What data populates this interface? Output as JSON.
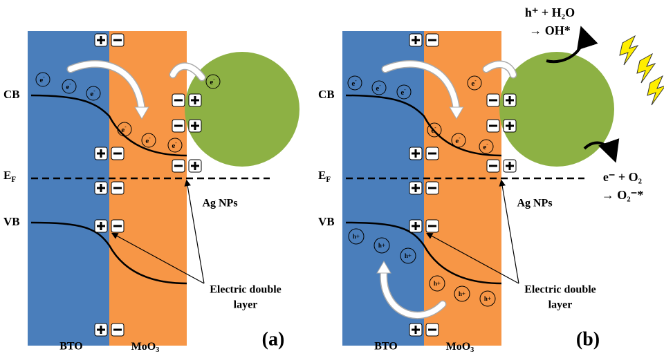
{
  "panels": [
    {
      "label": "(a)",
      "band_labels": {
        "cb": "CB",
        "ef": {
          "main": "E",
          "sub": "F"
        },
        "vb": "VB"
      },
      "materials": {
        "bto": "BTO",
        "moo3": {
          "main": "MoO",
          "sub": "3"
        },
        "ag": "Ag NPs"
      },
      "annotation": [
        "Electric double",
        "layer"
      ],
      "carriers": {
        "electron": {
          "main": "e",
          "sup": "-"
        }
      }
    },
    {
      "label": "(b)",
      "band_labels": {
        "cb": "CB",
        "ef": {
          "main": "E",
          "sub": "F"
        },
        "vb": "VB"
      },
      "materials": {
        "bto": "BTO",
        "moo3": {
          "main": "MoO",
          "sub": "3"
        },
        "ag": "Ag NPs"
      },
      "annotation": [
        "Electric double",
        "layer"
      ],
      "carriers": {
        "electron": {
          "main": "e",
          "sup": "-"
        },
        "hole": "h+"
      },
      "reactions": {
        "oxidation": [
          "h⁺ + H₂O",
          "→ OH*"
        ],
        "reduction": [
          "e⁻ + O₂",
          "→ O₂⁻*"
        ]
      }
    }
  ]
}
